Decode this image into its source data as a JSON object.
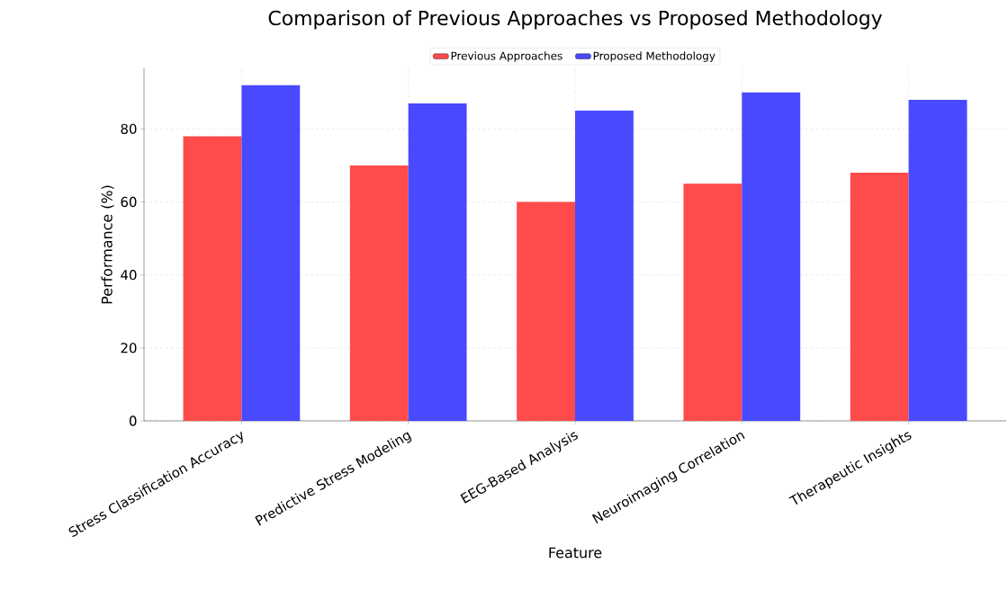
{
  "chart_data": {
    "type": "bar",
    "title": "Comparison of Previous Approaches vs Proposed Methodology",
    "xlabel": "Feature",
    "ylabel": "Performance (%)",
    "categories": [
      "Stress Classification Accuracy",
      "Predictive Stress Modeling",
      "EEG-Based Analysis",
      "Neuroimaging Correlation",
      "Therapeutic Insights"
    ],
    "series": [
      {
        "name": "Previous Approaches",
        "color": "#ff4b4b",
        "values": [
          78,
          70,
          60,
          65,
          68
        ]
      },
      {
        "name": "Proposed Methodology",
        "color": "#4949ff",
        "values": [
          92,
          87,
          85,
          90,
          88
        ]
      }
    ],
    "ylim": [
      0,
      96.6
    ],
    "yticks": [
      0,
      20,
      40,
      60,
      80
    ],
    "grid": true,
    "legend": "top"
  }
}
